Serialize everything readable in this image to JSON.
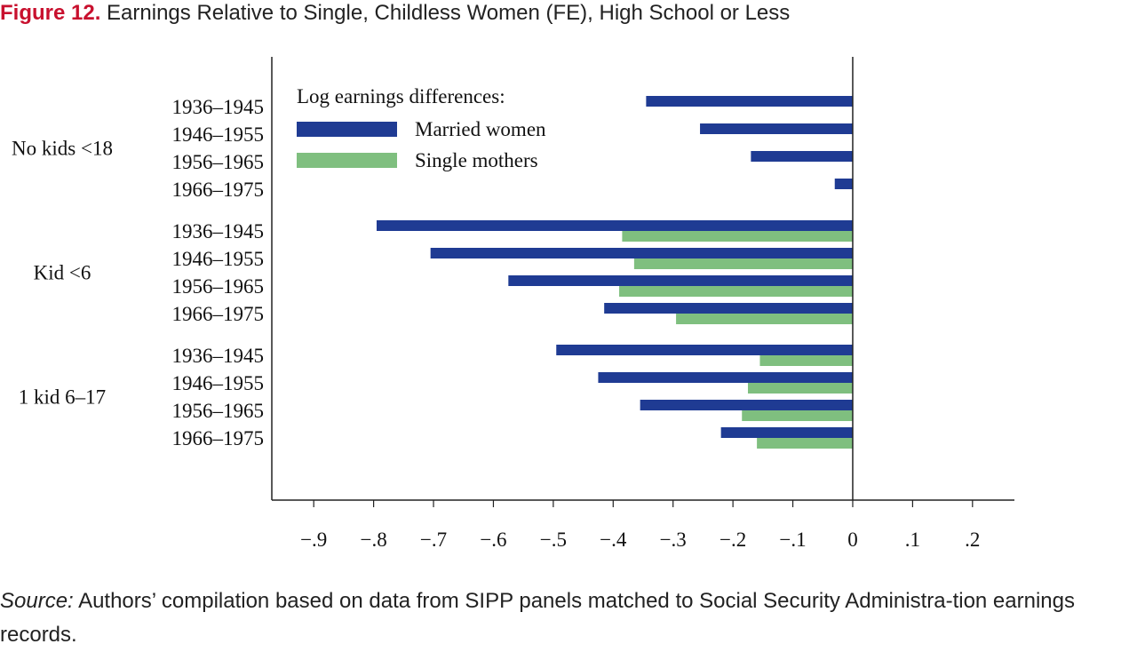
{
  "figure": {
    "number_label": "Figure 12.",
    "title_text": "Earnings Relative to Single, Childless Women (FE), High School or Less"
  },
  "source": {
    "label": "Source:",
    "text": "Authors’ compilation based on data from SIPP panels matched to Social Security Administra-tion earnings records."
  },
  "colors": {
    "married": "#1f3b93",
    "single": "#7fbf7f",
    "axis": "#222222"
  },
  "chart_data": {
    "type": "bar",
    "orientation": "horizontal",
    "title": "Earnings Relative to Single, Childless Women (FE), High School or Less",
    "legend_title": "Log earnings differences:",
    "legend_position": "top-left",
    "grid": false,
    "xlim": [
      -0.97,
      0.27
    ],
    "xticks": [
      -0.9,
      -0.8,
      -0.7,
      -0.6,
      -0.5,
      -0.4,
      -0.3,
      -0.2,
      -0.1,
      0,
      0.1,
      0.2
    ],
    "xtick_labels": [
      "−.9",
      "−.8",
      "−.7",
      "−.6",
      "−.5",
      "−.4",
      "−.3",
      "−.2",
      "−.1",
      "0",
      ".1",
      ".2"
    ],
    "series": [
      {
        "name": "Married women",
        "color": "#1f3b93"
      },
      {
        "name": "Single mothers",
        "color": "#7fbf7f"
      }
    ],
    "groups": [
      {
        "label": "No kids <18",
        "categories": [
          "1936–1945",
          "1946–1955",
          "1956–1965",
          "1966–1975"
        ],
        "married": [
          -0.345,
          -0.255,
          -0.17,
          -0.03
        ],
        "single": [
          null,
          null,
          null,
          null
        ]
      },
      {
        "label": "Kid <6",
        "categories": [
          "1936–1945",
          "1946–1955",
          "1956–1965",
          "1966–1975"
        ],
        "married": [
          -0.795,
          -0.705,
          -0.575,
          -0.415
        ],
        "single": [
          -0.385,
          -0.365,
          -0.39,
          -0.295
        ]
      },
      {
        "label": "1 kid 6–17",
        "categories": [
          "1936–1945",
          "1946–1955",
          "1956–1965",
          "1966–1975"
        ],
        "married": [
          -0.495,
          -0.425,
          -0.355,
          -0.22
        ],
        "single": [
          -0.155,
          -0.175,
          -0.185,
          -0.16
        ]
      }
    ]
  }
}
